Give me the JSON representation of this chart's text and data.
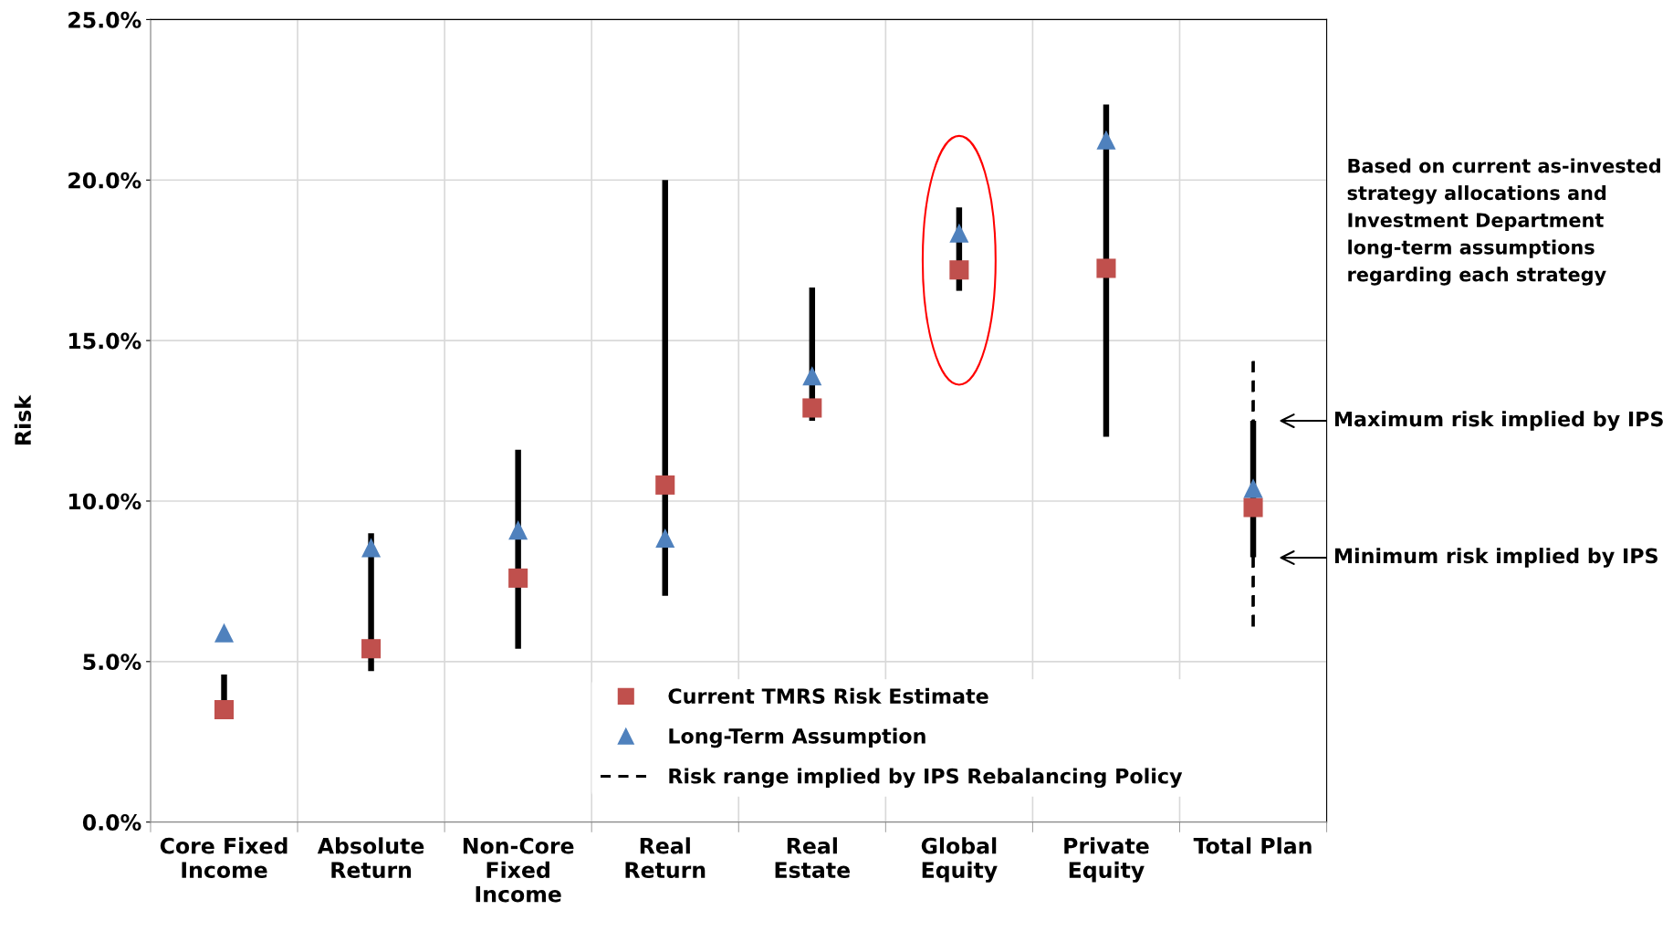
{
  "chart_data": {
    "type": "scatter",
    "ylabel": "Risk",
    "categories": [
      "Core Fixed Income",
      "Absolute Return",
      "Non-Core Fixed Income",
      "Real Return",
      "Real Estate",
      "Global Equity",
      "Private Equity",
      "Total Plan"
    ],
    "series": [
      {
        "type": "bar",
        "color": "#000000",
        "line_style": "solid",
        "base": [
          3.5,
          4.7,
          5.4,
          7.05,
          12.5,
          16.55,
          12.0,
          8.25
        ],
        "values": [
          1.1,
          4.3,
          6.2,
          12.95,
          4.15,
          2.6,
          10.35,
          4.25
        ]
      },
      {
        "type": "bar",
        "name": "Risk range implied by IPS Rebalancing Policy",
        "color": "#000000",
        "line_style": "dashed",
        "base": [
          null,
          null,
          null,
          null,
          null,
          null,
          null,
          6.13
        ],
        "values": [
          null,
          null,
          null,
          null,
          null,
          null,
          null,
          8.35
        ]
      },
      {
        "name": "Current TMRS Risk Estimate",
        "color": "#c0504d",
        "marker": "square",
        "values": [
          3.5,
          5.4,
          7.6,
          10.5,
          12.9,
          17.2,
          17.25,
          9.8
        ]
      },
      {
        "name": "Long-Term Assumption",
        "color": "#4f81bd",
        "marker": "triangle",
        "values": [
          5.9,
          8.55,
          9.1,
          8.85,
          13.9,
          18.35,
          21.25,
          10.4
        ]
      }
    ],
    "ylim": [
      0,
      25
    ],
    "yticks": [
      {
        "value": 0,
        "label": "0.0%"
      },
      {
        "value": 5,
        "label": "5.0%"
      },
      {
        "value": 10,
        "label": "10.0%"
      },
      {
        "value": 15,
        "label": "15.0%"
      },
      {
        "value": 20,
        "label": "20.0%"
      },
      {
        "value": 25,
        "label": "25.0%"
      }
    ],
    "grid": true,
    "legend": "bottom",
    "annotations": [
      "Based on current as-invested strategy allocations and Investment Department long-term assumptions regarding each strategy",
      "Maximum risk implied by IPS",
      "Minimum risk implied by IPS"
    ]
  }
}
